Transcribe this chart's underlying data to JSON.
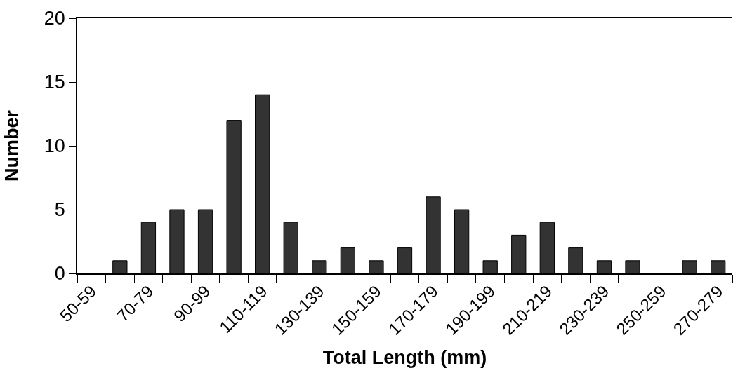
{
  "chart_data": {
    "type": "bar",
    "xlabel": "Total Length (mm)",
    "ylabel": "Number",
    "categories": [
      "50-59",
      null,
      "70-79",
      null,
      "90-99",
      null,
      "110-119",
      null,
      "130-139",
      null,
      "150-159",
      null,
      "170-179",
      null,
      "190-199",
      null,
      "210-219",
      null,
      "230-239",
      null,
      "250-259",
      null,
      "270-279"
    ],
    "values": [
      0,
      1,
      4,
      5,
      5,
      12,
      14,
      4,
      1,
      2,
      1,
      2,
      6,
      5,
      1,
      3,
      4,
      2,
      1,
      1,
      0,
      1,
      1
    ],
    "color": "#333333",
    "ylim": [
      0,
      20
    ],
    "yticks": [
      0,
      5,
      10,
      15,
      20
    ],
    "grid": false,
    "legend": false
  }
}
